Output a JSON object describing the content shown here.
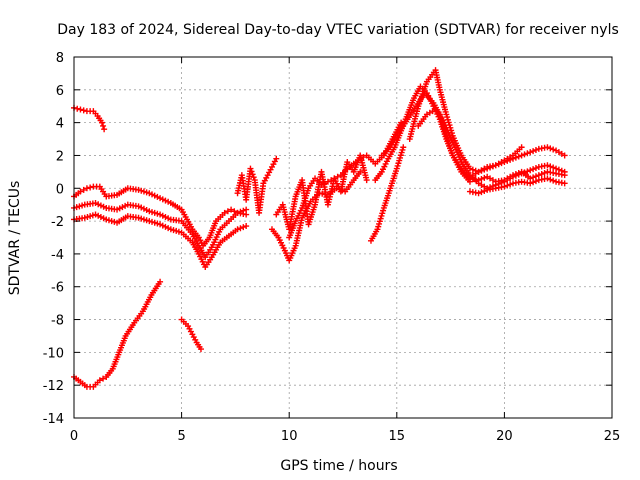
{
  "chart_data": {
    "type": "scatter",
    "title": "Day 183 of 2024, Sidereal Day-to-day VTEC variation (SDTVAR) for receiver nyls",
    "xlabel": "GPS time / hours",
    "ylabel": "SDTVAR / TECUs",
    "xlim": [
      0,
      25
    ],
    "ylim": [
      -14,
      8
    ],
    "xticks": [
      "0",
      "5",
      "10",
      "15",
      "20",
      "25"
    ],
    "yticks": [
      "-14",
      "-12",
      "-10",
      "-8",
      "-6",
      "-4",
      "-2",
      "0",
      "2",
      "4",
      "6",
      "8"
    ],
    "grid": true,
    "marker": "plus",
    "color": "#ff0000",
    "series": [
      {
        "name": "s1",
        "x": [
          0.0,
          0.3,
          0.6,
          0.9,
          1.1,
          1.3,
          1.4
        ],
        "y": [
          4.9,
          4.8,
          4.7,
          4.7,
          4.4,
          4.0,
          3.6
        ]
      },
      {
        "name": "s2",
        "x": [
          0.0,
          0.3,
          0.6,
          0.9,
          1.2,
          1.5,
          1.8,
          2.1,
          2.4,
          2.8,
          3.2,
          3.6,
          4.0
        ],
        "y": [
          -11.5,
          -11.8,
          -12.1,
          -12.1,
          -11.7,
          -11.5,
          -11.0,
          -10.0,
          -9.0,
          -8.2,
          -7.5,
          -6.5,
          -5.7
        ]
      },
      {
        "name": "s3",
        "x": [
          5.0,
          5.3,
          5.5,
          5.7,
          5.9
        ],
        "y": [
          -8.0,
          -8.4,
          -8.9,
          -9.4,
          -9.8
        ]
      },
      {
        "name": "s4",
        "x": [
          0.0,
          0.3,
          0.6,
          0.9,
          1.2,
          1.5,
          2.0,
          2.5,
          3.0,
          3.5,
          4.0,
          4.5,
          5.0,
          5.5,
          5.8,
          6.0,
          6.3,
          6.6,
          7.0,
          7.3,
          7.6,
          8.0
        ],
        "y": [
          -0.5,
          -0.2,
          0.0,
          0.1,
          0.1,
          -0.5,
          -0.4,
          0.0,
          -0.1,
          -0.3,
          -0.6,
          -0.9,
          -1.3,
          -2.5,
          -3.0,
          -3.5,
          -3.0,
          -2.0,
          -1.5,
          -1.3,
          -1.5,
          -1.6
        ]
      },
      {
        "name": "s5",
        "x": [
          0.0,
          0.5,
          1.0,
          1.5,
          2.0,
          2.5,
          3.0,
          3.5,
          4.0,
          4.5,
          5.0,
          5.5,
          5.8,
          6.1,
          6.4,
          6.8,
          7.2,
          7.6,
          8.0
        ],
        "y": [
          -1.2,
          -1.0,
          -0.9,
          -1.2,
          -1.3,
          -1.0,
          -1.1,
          -1.4,
          -1.6,
          -1.9,
          -2.0,
          -2.8,
          -3.5,
          -4.2,
          -3.6,
          -2.5,
          -2.0,
          -1.5,
          -1.3
        ]
      },
      {
        "name": "s6",
        "x": [
          0.0,
          0.5,
          1.0,
          1.5,
          2.0,
          2.5,
          3.0,
          3.5,
          4.0,
          4.5,
          5.0,
          5.5,
          5.8,
          6.1,
          6.4,
          6.8,
          7.2,
          7.6,
          8.0
        ],
        "y": [
          -1.9,
          -1.8,
          -1.6,
          -1.9,
          -2.1,
          -1.7,
          -1.8,
          -2.0,
          -2.2,
          -2.5,
          -2.7,
          -3.3,
          -4.0,
          -4.8,
          -4.2,
          -3.3,
          -2.9,
          -2.5,
          -2.3
        ]
      },
      {
        "name": "s7",
        "x": [
          7.6,
          7.8,
          8.0,
          8.2,
          8.4,
          8.6,
          8.8,
          9.0,
          9.2,
          9.4
        ],
        "y": [
          -0.3,
          0.8,
          -0.7,
          1.2,
          0.5,
          -1.5,
          0.3,
          0.8,
          1.3,
          1.8
        ]
      },
      {
        "name": "s8",
        "x": [
          9.2,
          9.5,
          9.8,
          10.0,
          10.3,
          10.6,
          11.0,
          11.4,
          11.8,
          12.2,
          12.6,
          13.0,
          13.3
        ],
        "y": [
          -2.5,
          -3.0,
          -3.8,
          -4.4,
          -3.5,
          -1.8,
          -0.8,
          -0.3,
          -0.4,
          0.0,
          -0.2,
          0.5,
          1.0
        ]
      },
      {
        "name": "s9",
        "x": [
          9.4,
          9.7,
          10.0,
          10.3,
          10.6,
          10.9,
          11.2,
          11.5,
          11.8,
          12.1,
          12.4,
          12.7,
          13.0,
          13.3,
          13.6
        ],
        "y": [
          -1.6,
          -1.0,
          -2.5,
          -0.5,
          0.5,
          -2.2,
          -1.0,
          1.0,
          -1.0,
          0.6,
          -0.2,
          1.6,
          1.0,
          2.0,
          0.5
        ]
      },
      {
        "name": "s10",
        "x": [
          10.0,
          10.3,
          10.6,
          10.9,
          11.2,
          11.5,
          11.8,
          12.1,
          12.4,
          12.7,
          13.0,
          13.3,
          13.6,
          14.0,
          14.4,
          14.8,
          15.2
        ],
        "y": [
          -3.0,
          -2.0,
          -1.2,
          0.0,
          0.6,
          0.2,
          0.4,
          0.6,
          0.8,
          1.2,
          1.5,
          1.8,
          2.0,
          1.5,
          2.0,
          3.0,
          4.0
        ]
      },
      {
        "name": "s11",
        "x": [
          13.8,
          14.1,
          14.4,
          14.7,
          15.0,
          15.3
        ],
        "y": [
          -3.2,
          -2.5,
          -1.2,
          0.0,
          1.2,
          2.5
        ]
      },
      {
        "name": "s12",
        "x": [
          14.0,
          14.3,
          14.6,
          14.9,
          15.2,
          15.5,
          15.8,
          16.1,
          16.4,
          16.7,
          17.0,
          17.3,
          17.6,
          18.0,
          18.4
        ],
        "y": [
          0.5,
          1.0,
          1.8,
          2.5,
          3.5,
          4.5,
          5.5,
          6.2,
          5.8,
          5.0,
          4.2,
          3.0,
          2.0,
          1.0,
          0.4
        ]
      },
      {
        "name": "s13",
        "x": [
          14.3,
          14.7,
          15.1,
          15.5,
          15.9,
          16.3,
          16.7,
          17.0,
          17.3,
          17.6,
          18.0,
          18.4,
          18.8,
          19.2,
          19.6,
          20.0,
          20.4,
          20.8,
          21.2,
          21.6,
          22.0,
          22.4,
          22.8
        ],
        "y": [
          2.0,
          2.5,
          3.4,
          4.2,
          5.0,
          5.8,
          5.2,
          4.5,
          3.2,
          2.0,
          1.2,
          0.6,
          0.5,
          0.7,
          0.4,
          0.5,
          0.8,
          1.0,
          0.6,
          0.8,
          1.0,
          0.9,
          0.8
        ]
      },
      {
        "name": "s14",
        "x": [
          15.6,
          16.0,
          16.4,
          16.8,
          17.0,
          17.3,
          17.6,
          18.0,
          18.4,
          18.8,
          19.2,
          19.6,
          20.0,
          20.4,
          20.8,
          21.2,
          21.6,
          22.0,
          22.4,
          22.8
        ],
        "y": [
          3.0,
          5.0,
          6.5,
          7.2,
          6.0,
          4.5,
          3.2,
          2.0,
          1.2,
          1.0,
          1.3,
          1.4,
          1.6,
          1.8,
          2.0,
          2.2,
          2.4,
          2.5,
          2.3,
          2.0
        ]
      },
      {
        "name": "s15",
        "x": [
          18.4,
          18.8,
          19.2,
          19.6,
          20.0,
          20.4,
          20.8,
          21.2,
          21.6,
          22.0,
          22.4,
          22.8
        ],
        "y": [
          -0.2,
          -0.3,
          -0.1,
          0.0,
          0.1,
          0.3,
          0.4,
          0.3,
          0.5,
          0.6,
          0.4,
          0.3
        ]
      },
      {
        "name": "s16",
        "x": [
          18.4,
          18.8,
          19.2,
          19.6,
          20.0,
          20.4,
          20.8
        ],
        "y": [
          0.7,
          1.0,
          1.2,
          1.4,
          1.7,
          2.0,
          2.5
        ]
      },
      {
        "name": "s17",
        "x": [
          16.0,
          16.4,
          16.8,
          17.2,
          17.6,
          18.0,
          18.4,
          18.8,
          19.2,
          19.6,
          20.0,
          20.4,
          20.8,
          21.2,
          21.6,
          22.0,
          22.4,
          22.8
        ],
        "y": [
          3.8,
          4.5,
          4.8,
          4.0,
          2.8,
          1.6,
          0.8,
          0.3,
          0.0,
          0.2,
          0.4,
          0.7,
          0.9,
          1.1,
          1.3,
          1.4,
          1.2,
          1.0
        ]
      }
    ]
  }
}
